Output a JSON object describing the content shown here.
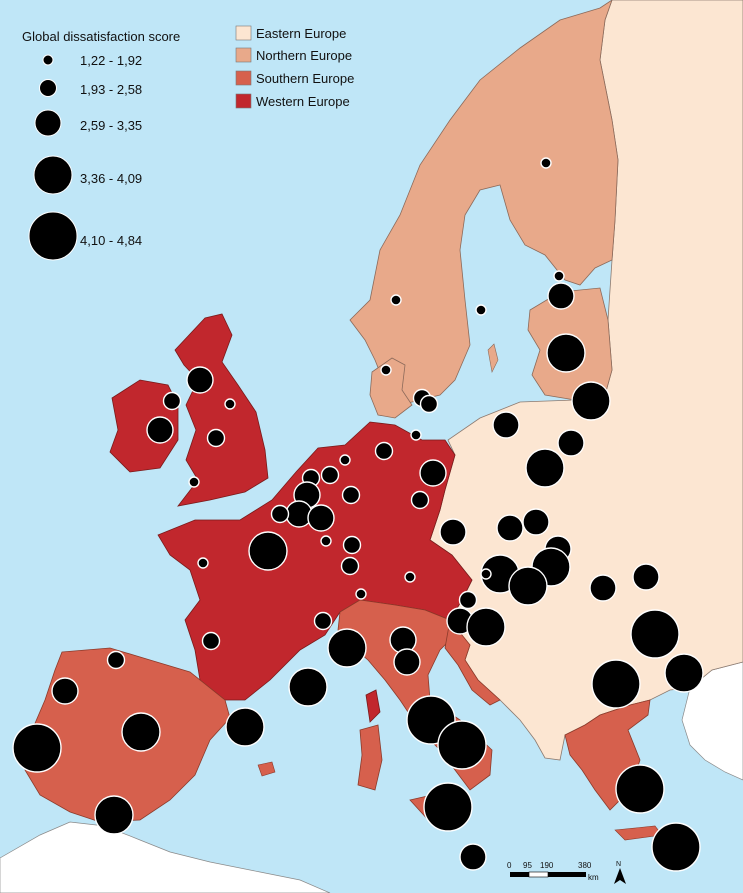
{
  "legend": {
    "score_title": "Global dissatisfaction score",
    "size_classes": [
      {
        "label": "1,22 - 1,92",
        "min": 1.22,
        "max": 1.92
      },
      {
        "label": "1,93 - 2,58",
        "min": 1.93,
        "max": 2.58
      },
      {
        "label": "2,59 - 3,35",
        "min": 2.59,
        "max": 3.35
      },
      {
        "label": "3,36 - 4,09",
        "min": 3.36,
        "max": 4.09
      },
      {
        "label": "4,10 - 4,84",
        "min": 4.1,
        "max": 4.84
      }
    ],
    "regions": [
      {
        "label": "Eastern Europe",
        "color": "#fce6d2"
      },
      {
        "label": "Northern Europe",
        "color": "#e8a98a"
      },
      {
        "label": "Southern Europe",
        "color": "#d6604d"
      },
      {
        "label": "Western Europe",
        "color": "#c1272d"
      }
    ]
  },
  "colors": {
    "sea": "#bfe6f7",
    "other_land": "#ffffff",
    "border": "#7a6a60",
    "dot": "#000000",
    "dot_stroke": "#ffffff"
  },
  "scale_bar": {
    "ticks": [
      "0",
      "95",
      "190",
      "380"
    ],
    "unit": "km"
  },
  "north_arrow": "N"
}
